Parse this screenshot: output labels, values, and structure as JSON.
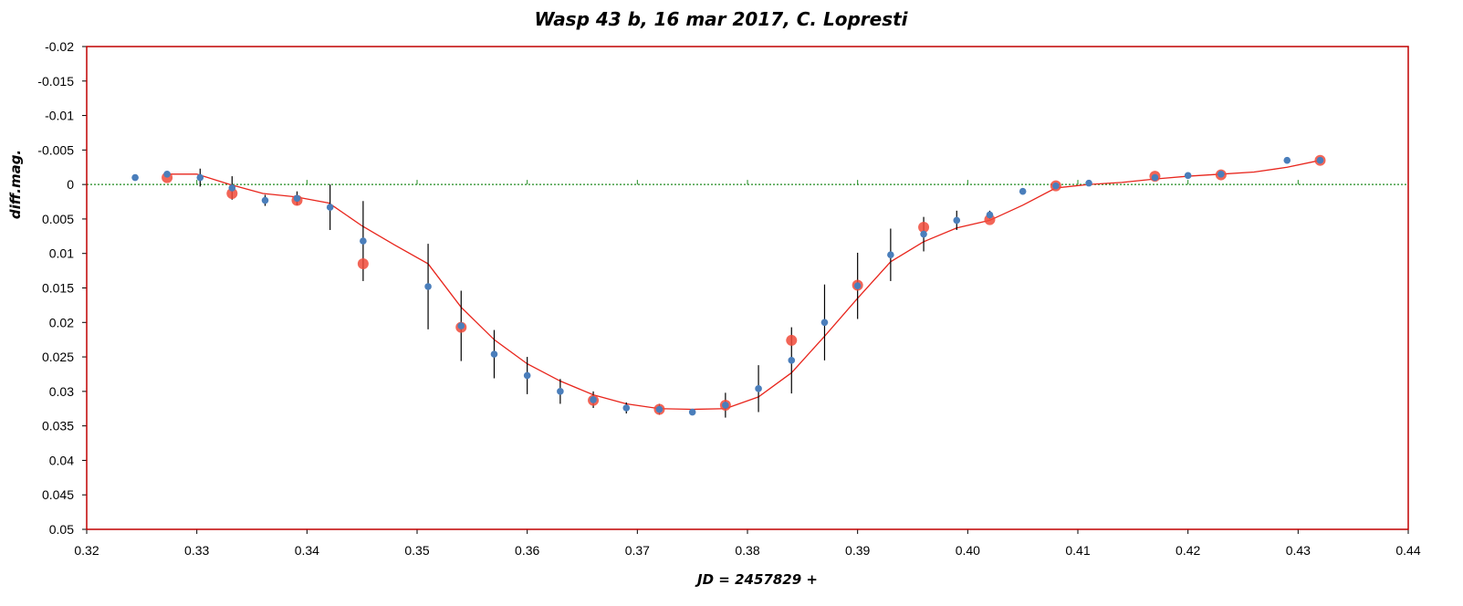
{
  "chart_data": {
    "type": "scatter",
    "title": "Wasp 43 b, 16 mar 2017, C. Lopresti",
    "xlabel": "JD = 2457829 +",
    "ylabel": "diff.mag.",
    "xlim": [
      0.32,
      0.44
    ],
    "ylim": [
      -0.02,
      0.05
    ],
    "y_inverted": true,
    "x_ticks": [
      "0.32",
      "0.33",
      "0.34",
      "0.35",
      "0.36",
      "0.37",
      "0.38",
      "0.39",
      "0.40",
      "0.41",
      "0.42",
      "0.43",
      "0.44"
    ],
    "y_ticks": [
      "-0.02",
      "-0.015",
      "-0.01",
      "-0.005",
      "0",
      "0.005",
      "0.01",
      "0.015",
      "0.02",
      "0.025",
      "0.03",
      "0.035",
      "0.04",
      "0.045",
      "0.05"
    ],
    "grid": false,
    "legend": "none",
    "colors": {
      "frame": "#c00000",
      "blue_points": "#4a7ebb",
      "red_points": "#f04a3a",
      "model_line": "#e8251c",
      "zero_line": "#1f8a1f",
      "error_bars": "#000000"
    },
    "series": [
      {
        "kind": "points_with_error",
        "color": "blue",
        "x": [
          0.3244,
          0.3273,
          0.3303,
          0.3332,
          0.3362,
          0.3391,
          0.3421,
          0.3451,
          0.351,
          0.354,
          0.357,
          0.36,
          0.363,
          0.366,
          0.369,
          0.372,
          0.375,
          0.378,
          0.381,
          0.384,
          0.387,
          0.39,
          0.393,
          0.396,
          0.399,
          0.402,
          0.405,
          0.408,
          0.411,
          0.417,
          0.42,
          0.423,
          0.429,
          0.432
        ],
        "y": [
          -0.001,
          -0.0015,
          -0.001,
          0.0005,
          0.0023,
          0.002,
          0.0033,
          0.0082,
          0.0148,
          0.0205,
          0.0246,
          0.0277,
          0.03,
          0.0312,
          0.0324,
          0.0326,
          0.033,
          0.032,
          0.0296,
          0.0255,
          0.02,
          0.0147,
          0.0102,
          0.0072,
          0.0052,
          0.0044,
          0.001,
          0.0002,
          -0.0002,
          -0.001,
          -0.0013,
          -0.0015,
          -0.0035,
          -0.0035
        ],
        "err": [
          0,
          0.0002,
          0.0013,
          0.0017,
          0.0008,
          0.001,
          0.0033,
          0.0058,
          0.0062,
          0.0051,
          0.0035,
          0.0027,
          0.0018,
          0.0012,
          0.0008,
          0.0008,
          0,
          0.0018,
          0.0034,
          0.0048,
          0.0055,
          0.0048,
          0.0038,
          0.0025,
          0.0014,
          0.0006,
          0,
          0,
          0.0004,
          0,
          0,
          0,
          0,
          0
        ]
      },
      {
        "kind": "points",
        "color": "red",
        "x": [
          0.3273,
          0.3332,
          0.3391,
          0.3451,
          0.354,
          0.366,
          0.372,
          0.378,
          0.384,
          0.39,
          0.396,
          0.402,
          0.408,
          0.417,
          0.423,
          0.432
        ],
        "y": [
          -0.001,
          0.0013,
          0.0023,
          0.0115,
          0.0207,
          0.0313,
          0.0326,
          0.032,
          0.0226,
          0.0146,
          0.0062,
          0.0051,
          0.0002,
          -0.0012,
          -0.0014,
          -0.0035
        ]
      },
      {
        "kind": "line",
        "color": "red",
        "x": [
          0.327,
          0.33,
          0.333,
          0.336,
          0.339,
          0.342,
          0.345,
          0.348,
          0.351,
          0.354,
          0.357,
          0.36,
          0.363,
          0.366,
          0.369,
          0.372,
          0.375,
          0.378,
          0.381,
          0.384,
          0.387,
          0.39,
          0.393,
          0.396,
          0.399,
          0.402,
          0.405,
          0.408,
          0.411,
          0.414,
          0.417,
          0.42,
          0.423,
          0.426,
          0.429,
          0.432
        ],
        "y": [
          -0.0015,
          -0.0015,
          0,
          0.0013,
          0.0018,
          0.0027,
          0.006,
          0.0088,
          0.0115,
          0.0178,
          0.0225,
          0.026,
          0.0285,
          0.0305,
          0.0318,
          0.0325,
          0.0326,
          0.0325,
          0.0308,
          0.0273,
          0.022,
          0.0165,
          0.0112,
          0.0083,
          0.0063,
          0.0052,
          0.003,
          0.0005,
          0,
          -0.0003,
          -0.0008,
          -0.0012,
          -0.0015,
          -0.0018,
          -0.0025,
          -0.0035
        ]
      },
      {
        "kind": "reference_line",
        "y": 0
      }
    ]
  }
}
